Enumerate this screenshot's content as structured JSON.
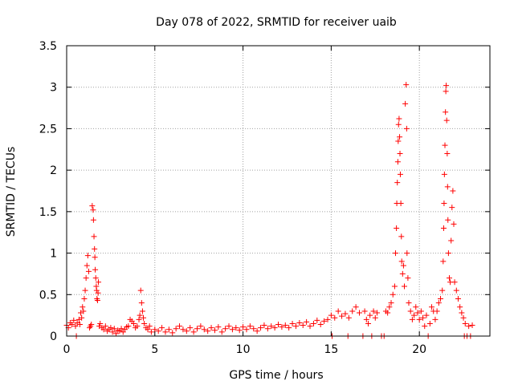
{
  "chart_data": {
    "type": "scatter",
    "title": "Day 078 of 2022, SRMTID for receiver uaib",
    "xlabel": "GPS time / hours",
    "ylabel": "SRMTID / TECUs",
    "xlim": [
      0,
      24
    ],
    "ylim": [
      0,
      3.5
    ],
    "xticks": [
      0,
      5,
      10,
      15,
      20
    ],
    "yticks": [
      0,
      0.5,
      1,
      1.5,
      2,
      2.5,
      3,
      3.5
    ],
    "xtick_labels": [
      "0",
      "5",
      "10",
      "15",
      "20"
    ],
    "ytick_labels": [
      "0",
      "0.5",
      "1",
      "1.5",
      "2",
      "2.5",
      "3",
      "3.5"
    ],
    "grid": true,
    "marker": "+",
    "color": "#ff0000",
    "series": [
      {
        "name": "SRMTID",
        "points": [
          [
            0.0,
            0.13
          ],
          [
            0.1,
            0.1
          ],
          [
            0.2,
            0.16
          ],
          [
            0.3,
            0.14
          ],
          [
            0.4,
            0.19
          ],
          [
            0.5,
            0.12
          ],
          [
            0.55,
            0.0
          ],
          [
            0.6,
            0.16
          ],
          [
            0.7,
            0.2
          ],
          [
            0.75,
            0.14
          ],
          [
            0.8,
            0.28
          ],
          [
            0.85,
            0.22
          ],
          [
            0.9,
            0.35
          ],
          [
            0.95,
            0.3
          ],
          [
            1.0,
            0.45
          ],
          [
            1.05,
            0.55
          ],
          [
            1.1,
            0.7
          ],
          [
            1.15,
            0.85
          ],
          [
            1.2,
            0.97
          ],
          [
            1.25,
            0.78
          ],
          [
            1.3,
            0.1
          ],
          [
            1.35,
            0.12
          ],
          [
            1.4,
            0.14
          ],
          [
            1.45,
            1.57
          ],
          [
            1.5,
            1.52
          ],
          [
            1.52,
            1.4
          ],
          [
            1.55,
            1.2
          ],
          [
            1.58,
            1.05
          ],
          [
            1.6,
            0.95
          ],
          [
            1.62,
            0.8
          ],
          [
            1.65,
            0.7
          ],
          [
            1.68,
            0.6
          ],
          [
            1.7,
            0.55
          ],
          [
            1.72,
            0.45
          ],
          [
            1.75,
            0.43
          ],
          [
            1.78,
            0.52
          ],
          [
            1.8,
            0.65
          ],
          [
            1.85,
            0.12
          ],
          [
            1.9,
            0.15
          ],
          [
            2.0,
            0.1
          ],
          [
            2.1,
            0.08
          ],
          [
            2.2,
            0.12
          ],
          [
            2.3,
            0.06
          ],
          [
            2.4,
            0.08
          ],
          [
            2.5,
            0.1
          ],
          [
            2.6,
            0.05
          ],
          [
            2.7,
            0.09
          ],
          [
            2.8,
            0.03
          ],
          [
            2.9,
            0.07
          ],
          [
            3.0,
            0.06
          ],
          [
            3.1,
            0.09
          ],
          [
            3.2,
            0.05
          ],
          [
            3.3,
            0.08
          ],
          [
            3.4,
            0.11
          ],
          [
            3.5,
            0.12
          ],
          [
            3.6,
            0.2
          ],
          [
            3.7,
            0.18
          ],
          [
            3.8,
            0.15
          ],
          [
            3.9,
            0.1
          ],
          [
            4.0,
            0.12
          ],
          [
            4.1,
            0.2
          ],
          [
            4.15,
            0.25
          ],
          [
            4.2,
            0.55
          ],
          [
            4.25,
            0.4
          ],
          [
            4.3,
            0.3
          ],
          [
            4.35,
            0.22
          ],
          [
            4.4,
            0.15
          ],
          [
            4.5,
            0.1
          ],
          [
            4.6,
            0.08
          ],
          [
            4.7,
            0.12
          ],
          [
            4.8,
            0.05
          ],
          [
            5.0,
            0.08
          ],
          [
            5.2,
            0.06
          ],
          [
            5.4,
            0.1
          ],
          [
            5.6,
            0.05
          ],
          [
            5.8,
            0.08
          ],
          [
            6.0,
            0.04
          ],
          [
            6.2,
            0.09
          ],
          [
            6.4,
            0.12
          ],
          [
            6.6,
            0.08
          ],
          [
            6.8,
            0.06
          ],
          [
            7.0,
            0.1
          ],
          [
            7.2,
            0.05
          ],
          [
            7.4,
            0.09
          ],
          [
            7.6,
            0.12
          ],
          [
            7.8,
            0.08
          ],
          [
            8.0,
            0.06
          ],
          [
            8.2,
            0.1
          ],
          [
            8.4,
            0.07
          ],
          [
            8.6,
            0.11
          ],
          [
            8.8,
            0.05
          ],
          [
            9.0,
            0.09
          ],
          [
            9.2,
            0.12
          ],
          [
            9.4,
            0.08
          ],
          [
            9.6,
            0.1
          ],
          [
            9.8,
            0.07
          ],
          [
            10.0,
            0.11
          ],
          [
            10.2,
            0.08
          ],
          [
            10.4,
            0.12
          ],
          [
            10.6,
            0.09
          ],
          [
            10.8,
            0.06
          ],
          [
            11.0,
            0.1
          ],
          [
            11.2,
            0.13
          ],
          [
            11.4,
            0.09
          ],
          [
            11.6,
            0.12
          ],
          [
            11.8,
            0.1
          ],
          [
            12.0,
            0.14
          ],
          [
            12.2,
            0.11
          ],
          [
            12.4,
            0.13
          ],
          [
            12.6,
            0.1
          ],
          [
            12.8,
            0.15
          ],
          [
            13.0,
            0.12
          ],
          [
            13.2,
            0.16
          ],
          [
            13.4,
            0.13
          ],
          [
            13.6,
            0.17
          ],
          [
            13.8,
            0.12
          ],
          [
            14.0,
            0.15
          ],
          [
            14.2,
            0.19
          ],
          [
            14.4,
            0.14
          ],
          [
            14.6,
            0.18
          ],
          [
            14.8,
            0.2
          ],
          [
            15.0,
            0.25
          ],
          [
            15.05,
            0.0
          ],
          [
            15.2,
            0.22
          ],
          [
            15.4,
            0.3
          ],
          [
            15.6,
            0.24
          ],
          [
            15.8,
            0.27
          ],
          [
            15.95,
            0.0
          ],
          [
            16.0,
            0.22
          ],
          [
            16.2,
            0.3
          ],
          [
            16.4,
            0.35
          ],
          [
            16.6,
            0.28
          ],
          [
            16.8,
            0.0
          ],
          [
            16.9,
            0.3
          ],
          [
            17.0,
            0.2
          ],
          [
            17.1,
            0.15
          ],
          [
            17.2,
            0.25
          ],
          [
            17.3,
            0.0
          ],
          [
            17.4,
            0.3
          ],
          [
            17.5,
            0.22
          ],
          [
            17.6,
            0.28
          ],
          [
            17.85,
            0.0
          ],
          [
            18.0,
            0.0
          ],
          [
            18.1,
            0.3
          ],
          [
            18.2,
            0.28
          ],
          [
            18.3,
            0.35
          ],
          [
            18.4,
            0.4
          ],
          [
            18.5,
            0.5
          ],
          [
            18.6,
            0.6
          ],
          [
            18.65,
            1.0
          ],
          [
            18.7,
            1.3
          ],
          [
            18.72,
            1.6
          ],
          [
            18.75,
            1.85
          ],
          [
            18.78,
            2.1
          ],
          [
            18.8,
            2.35
          ],
          [
            18.82,
            2.55
          ],
          [
            18.85,
            2.62
          ],
          [
            18.88,
            2.4
          ],
          [
            18.9,
            2.2
          ],
          [
            18.92,
            1.95
          ],
          [
            18.95,
            1.6
          ],
          [
            18.98,
            1.2
          ],
          [
            19.0,
            0.9
          ],
          [
            19.05,
            0.75
          ],
          [
            19.1,
            0.85
          ],
          [
            19.15,
            0.6
          ],
          [
            19.2,
            2.8
          ],
          [
            19.25,
            3.03
          ],
          [
            19.28,
            2.5
          ],
          [
            19.3,
            1.0
          ],
          [
            19.35,
            0.7
          ],
          [
            19.4,
            0.4
          ],
          [
            19.5,
            0.3
          ],
          [
            19.6,
            0.2
          ],
          [
            19.7,
            0.25
          ],
          [
            19.8,
            0.35
          ],
          [
            19.9,
            0.28
          ],
          [
            20.0,
            0.2
          ],
          [
            20.1,
            0.3
          ],
          [
            20.2,
            0.22
          ],
          [
            20.3,
            0.12
          ],
          [
            20.4,
            0.25
          ],
          [
            20.5,
            0.0
          ],
          [
            20.6,
            0.15
          ],
          [
            20.7,
            0.35
          ],
          [
            20.8,
            0.3
          ],
          [
            20.9,
            0.2
          ],
          [
            21.0,
            0.3
          ],
          [
            21.1,
            0.4
          ],
          [
            21.2,
            0.45
          ],
          [
            21.3,
            0.55
          ],
          [
            21.35,
            0.9
          ],
          [
            21.38,
            1.3
          ],
          [
            21.4,
            1.6
          ],
          [
            21.42,
            1.95
          ],
          [
            21.45,
            2.3
          ],
          [
            21.48,
            2.7
          ],
          [
            21.5,
            2.95
          ],
          [
            21.52,
            3.02
          ],
          [
            21.55,
            2.6
          ],
          [
            21.58,
            2.2
          ],
          [
            21.6,
            1.8
          ],
          [
            21.62,
            1.4
          ],
          [
            21.65,
            1.0
          ],
          [
            21.7,
            0.7
          ],
          [
            21.75,
            0.65
          ],
          [
            21.8,
            1.15
          ],
          [
            21.85,
            1.55
          ],
          [
            21.9,
            1.75
          ],
          [
            21.95,
            1.35
          ],
          [
            22.0,
            0.65
          ],
          [
            22.1,
            0.55
          ],
          [
            22.2,
            0.45
          ],
          [
            22.3,
            0.35
          ],
          [
            22.4,
            0.28
          ],
          [
            22.5,
            0.22
          ],
          [
            22.55,
            0.0
          ],
          [
            22.6,
            0.15
          ],
          [
            22.7,
            0.0
          ],
          [
            22.8,
            0.12
          ],
          [
            22.9,
            0.0
          ],
          [
            23.0,
            0.13
          ]
        ]
      }
    ]
  }
}
